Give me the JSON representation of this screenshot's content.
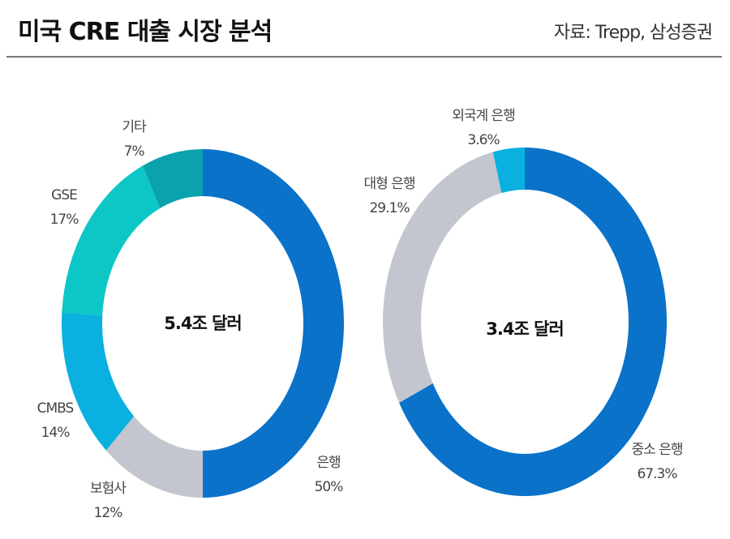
{
  "header": {
    "title": "미국 CRE 대출 시장 분석",
    "source": "자료: Trepp, 삼성증권"
  },
  "chart_data": [
    {
      "type": "pie",
      "variant": "donut",
      "title": "",
      "center_label": "5.4조 달러",
      "start": "top",
      "direction": "clockwise",
      "slices": [
        {
          "name": "은행",
          "value": 50,
          "label": "50%",
          "color": "#0a72c8"
        },
        {
          "name": "보험사",
          "value": 12,
          "label": "12%",
          "color": "#c4c6cf"
        },
        {
          "name": "CMBS",
          "value": 14,
          "label": "14%",
          "color": "#0ab0e0"
        },
        {
          "name": "GSE",
          "value": 17,
          "label": "17%",
          "color": "#0cc7c5"
        },
        {
          "name": "기타",
          "value": 7,
          "label": "7%",
          "color": "#0aa3ad"
        }
      ]
    },
    {
      "type": "pie",
      "variant": "donut",
      "title": "",
      "center_label": "3.4조 달러",
      "start": "top",
      "direction": "clockwise",
      "slices": [
        {
          "name": "중소 은행",
          "value": 67.3,
          "label": "67.3%",
          "color": "#0a72c8"
        },
        {
          "name": "대형 은행",
          "value": 29.1,
          "label": "29.1%",
          "color": "#c4c6cf"
        },
        {
          "name": "외국계 은행",
          "value": 3.6,
          "label": "3.6%",
          "color": "#0ab0e0"
        }
      ]
    }
  ]
}
